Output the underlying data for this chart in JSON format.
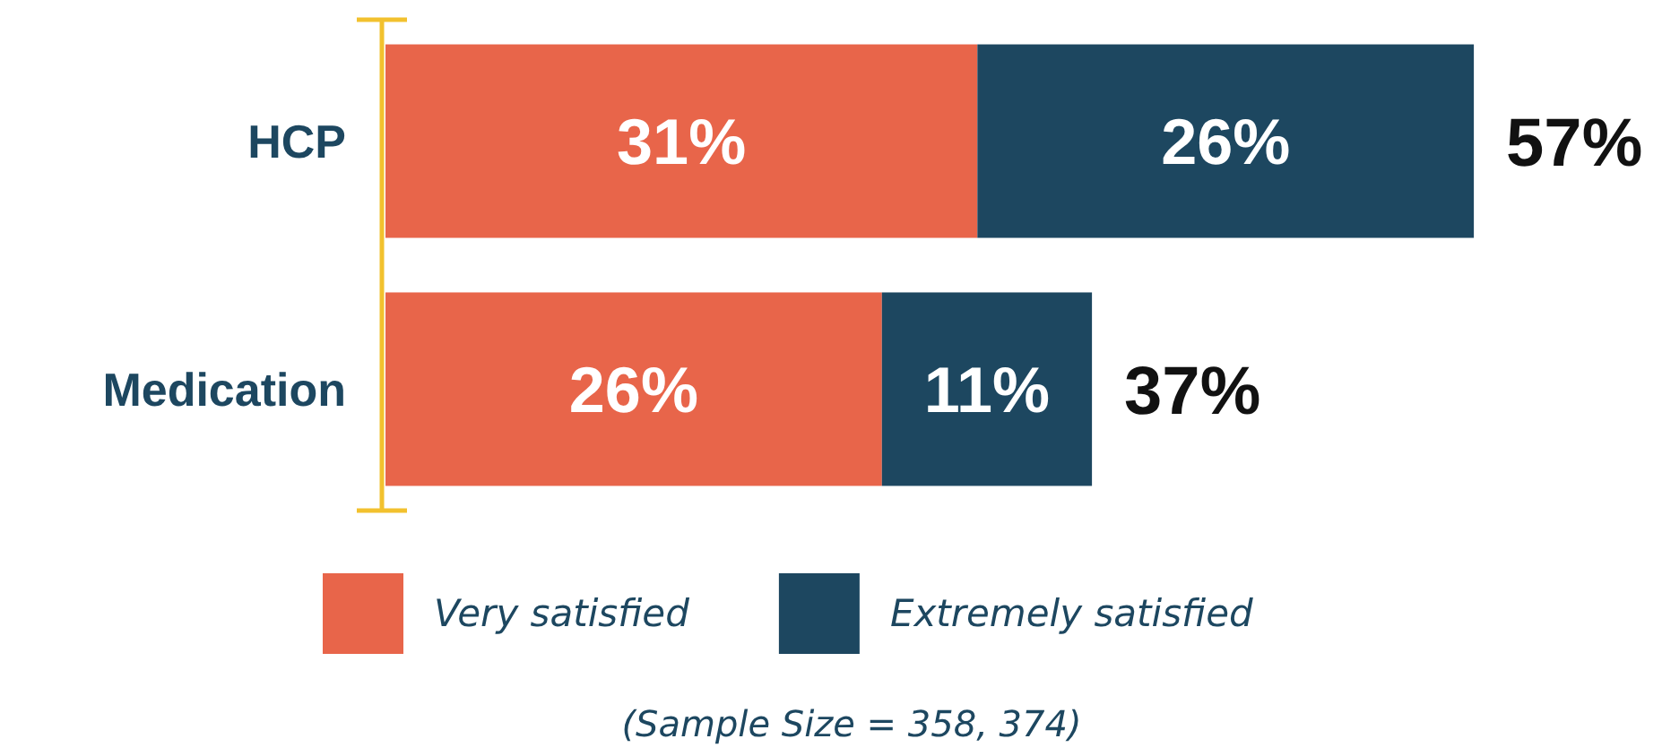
{
  "chart_data": {
    "type": "bar",
    "orientation": "horizontal",
    "stacked": true,
    "categories": [
      "HCP",
      "Medication"
    ],
    "series": [
      {
        "name": "Very satisfied",
        "color": "#e8654a",
        "values": [
          31,
          26
        ],
        "value_labels": [
          "31%",
          "26%"
        ]
      },
      {
        "name": "Extremely satisfied",
        "color": "#1d4760",
        "values": [
          26,
          11
        ],
        "value_labels": [
          "26%",
          "11%"
        ]
      }
    ],
    "totals": [
      "57%",
      "37%"
    ],
    "tick_labels": "y",
    "legend": "bottom",
    "annotations": [
      "(Sample Size = 358, 374)"
    ]
  }
}
